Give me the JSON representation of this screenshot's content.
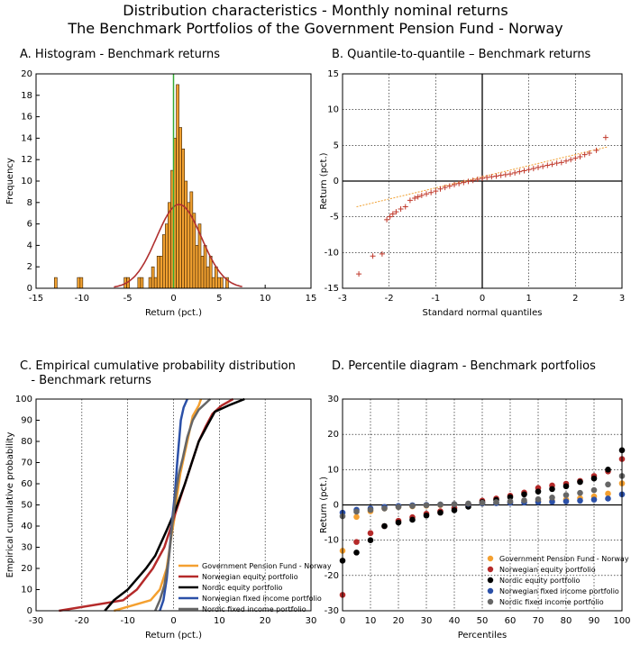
{
  "figure": {
    "title_line1": "Distribution characteristics - Monthly nominal returns",
    "title_line2": "The Benchmark Portfolios of the Government Pension Fund - Norway"
  },
  "chart_data": [
    {
      "id": "A",
      "type": "bar",
      "title": "A. Histogram - Benchmark returns",
      "xlabel": "Return (pct.)",
      "ylabel": "Frequency",
      "xlim": [
        -15,
        15
      ],
      "ylim": [
        0,
        20
      ],
      "xticks": [
        -15,
        -10,
        -5,
        0,
        5,
        10,
        15
      ],
      "yticks": [
        0,
        2,
        4,
        6,
        8,
        10,
        12,
        14,
        16,
        18,
        20
      ],
      "bin_width": 0.3,
      "bins": [
        {
          "x": -13.0,
          "count": 1
        },
        {
          "x": -10.5,
          "count": 1
        },
        {
          "x": -10.2,
          "count": 1
        },
        {
          "x": -5.4,
          "count": 1
        },
        {
          "x": -5.1,
          "count": 1
        },
        {
          "x": -3.9,
          "count": 1
        },
        {
          "x": -3.6,
          "count": 1
        },
        {
          "x": -2.7,
          "count": 1
        },
        {
          "x": -2.4,
          "count": 2
        },
        {
          "x": -2.1,
          "count": 1
        },
        {
          "x": -1.8,
          "count": 3
        },
        {
          "x": -1.5,
          "count": 3
        },
        {
          "x": -1.2,
          "count": 5
        },
        {
          "x": -0.9,
          "count": 6
        },
        {
          "x": -0.6,
          "count": 8
        },
        {
          "x": -0.3,
          "count": 11
        },
        {
          "x": 0.0,
          "count": 14
        },
        {
          "x": 0.3,
          "count": 19
        },
        {
          "x": 0.6,
          "count": 15
        },
        {
          "x": 0.9,
          "count": 13
        },
        {
          "x": 1.2,
          "count": 10
        },
        {
          "x": 1.5,
          "count": 8
        },
        {
          "x": 1.8,
          "count": 9
        },
        {
          "x": 2.1,
          "count": 7
        },
        {
          "x": 2.4,
          "count": 4
        },
        {
          "x": 2.7,
          "count": 6
        },
        {
          "x": 3.0,
          "count": 3
        },
        {
          "x": 3.3,
          "count": 4
        },
        {
          "x": 3.6,
          "count": 2
        },
        {
          "x": 3.9,
          "count": 3
        },
        {
          "x": 4.2,
          "count": 1
        },
        {
          "x": 4.5,
          "count": 2
        },
        {
          "x": 4.8,
          "count": 1
        },
        {
          "x": 5.1,
          "count": 1
        },
        {
          "x": 5.7,
          "count": 1
        }
      ],
      "normal_fit": {
        "mean": 0.6,
        "std": 2.45,
        "n": 160
      },
      "vline_x": 0,
      "colors": {
        "bar": "#f0a030",
        "bar_edge": "#3a2000",
        "fit": "#b03030",
        "vline": "#33aa33"
      }
    },
    {
      "id": "B",
      "type": "scatter",
      "title": "B. Quantile-to-quantile – Benchmark returns",
      "xlabel": "Standard normal quantiles",
      "ylabel": "Return (pct.)",
      "xlim": [
        -3,
        3
      ],
      "ylim": [
        -15,
        15
      ],
      "xticks": [
        -3,
        -2,
        -1,
        0,
        1,
        2,
        3
      ],
      "yticks": [
        -15,
        -10,
        -5,
        0,
        5,
        10,
        15
      ],
      "points": [
        [
          -2.65,
          -13.0
        ],
        [
          -2.35,
          -10.5
        ],
        [
          -2.15,
          -10.2
        ],
        [
          -2.05,
          -5.4
        ],
        [
          -1.98,
          -5.0
        ],
        [
          -1.92,
          -4.6
        ],
        [
          -1.85,
          -4.3
        ],
        [
          -1.75,
          -3.9
        ],
        [
          -1.65,
          -3.6
        ],
        [
          -1.55,
          -2.7
        ],
        [
          -1.45,
          -2.4
        ],
        [
          -1.38,
          -2.2
        ],
        [
          -1.3,
          -2.0
        ],
        [
          -1.2,
          -1.8
        ],
        [
          -1.1,
          -1.6
        ],
        [
          -1.0,
          -1.4
        ],
        [
          -0.9,
          -1.1
        ],
        [
          -0.8,
          -0.9
        ],
        [
          -0.7,
          -0.7
        ],
        [
          -0.6,
          -0.5
        ],
        [
          -0.5,
          -0.35
        ],
        [
          -0.4,
          -0.2
        ],
        [
          -0.3,
          -0.05
        ],
        [
          -0.2,
          0.1
        ],
        [
          -0.1,
          0.25
        ],
        [
          0.0,
          0.4
        ],
        [
          0.1,
          0.5
        ],
        [
          0.2,
          0.6
        ],
        [
          0.3,
          0.7
        ],
        [
          0.4,
          0.8
        ],
        [
          0.5,
          0.9
        ],
        [
          0.6,
          1.0
        ],
        [
          0.7,
          1.15
        ],
        [
          0.8,
          1.3
        ],
        [
          0.9,
          1.45
        ],
        [
          1.0,
          1.6
        ],
        [
          1.1,
          1.75
        ],
        [
          1.2,
          1.9
        ],
        [
          1.3,
          2.05
        ],
        [
          1.4,
          2.2
        ],
        [
          1.5,
          2.35
        ],
        [
          1.6,
          2.5
        ],
        [
          1.7,
          2.6
        ],
        [
          1.8,
          2.8
        ],
        [
          1.9,
          3.0
        ],
        [
          2.0,
          3.2
        ],
        [
          2.1,
          3.4
        ],
        [
          2.2,
          3.7
        ],
        [
          2.3,
          3.9
        ],
        [
          2.45,
          4.3
        ],
        [
          2.65,
          6.1
        ]
      ],
      "ref_line": {
        "x": [
          -2.7,
          2.7
        ],
        "y": [
          -3.6,
          4.8
        ]
      },
      "colors": {
        "marker": "#c0392b",
        "ref_line": "#f0a030"
      }
    },
    {
      "id": "C",
      "type": "line",
      "title_line1": "C. Empirical cumulative probability distribution",
      "title_line2": "   - Benchmark returns",
      "xlabel": "Return (pct.)",
      "ylabel": "Empirical cumulative probability",
      "xlim": [
        -30,
        30
      ],
      "ylim": [
        0,
        100
      ],
      "xticks": [
        -30,
        -20,
        -10,
        0,
        10,
        20,
        30
      ],
      "yticks": [
        0,
        10,
        20,
        30,
        40,
        50,
        60,
        70,
        80,
        90,
        100
      ],
      "series": [
        {
          "name": "Government Pension Fund - Norway",
          "color": "#f4a030",
          "points": [
            [
              -13,
              0
            ],
            [
              -5,
              5
            ],
            [
              -3,
              10
            ],
            [
              -1.5,
              20
            ],
            [
              -0.5,
              35
            ],
            [
              0.3,
              45
            ],
            [
              0.8,
              55
            ],
            [
              1.5,
              65
            ],
            [
              2.5,
              75
            ],
            [
              3.5,
              85
            ],
            [
              4.2,
              92
            ],
            [
              5.5,
              97
            ],
            [
              6,
              100
            ]
          ]
        },
        {
          "name": "Norwegian equity portfolio",
          "color": "#b52a2a",
          "points": [
            [
              -25,
              0
            ],
            [
              -11,
              5
            ],
            [
              -8,
              10
            ],
            [
              -4.5,
              20
            ],
            [
              -2,
              30
            ],
            [
              -0.5,
              40
            ],
            [
              1,
              50
            ],
            [
              2.5,
              60
            ],
            [
              4,
              70
            ],
            [
              5.5,
              80
            ],
            [
              7,
              87
            ],
            [
              8.5,
              93
            ],
            [
              10.5,
              97
            ],
            [
              13,
              100
            ]
          ]
        },
        {
          "name": "Nordic equity portfolio",
          "color": "#000000",
          "points": [
            [
              -15,
              0
            ],
            [
              -13,
              5
            ],
            [
              -10,
              10
            ],
            [
              -6,
              20
            ],
            [
              -4,
              26
            ],
            [
              -1.5,
              38
            ],
            [
              0.5,
              48
            ],
            [
              2.5,
              60
            ],
            [
              4,
              70
            ],
            [
              5.5,
              80
            ],
            [
              7.5,
              88
            ],
            [
              9,
              94
            ],
            [
              12,
              97
            ],
            [
              15.5,
              100
            ]
          ]
        },
        {
          "name": "Norwegian fixed income portfolio",
          "color": "#2b50a8",
          "points": [
            [
              -3,
              0
            ],
            [
              -2.2,
              5
            ],
            [
              -1.5,
              15
            ],
            [
              -0.8,
              30
            ],
            [
              -0.2,
              45
            ],
            [
              0.3,
              55
            ],
            [
              0.8,
              70
            ],
            [
              1.2,
              80
            ],
            [
              1.6,
              90
            ],
            [
              2.2,
              96
            ],
            [
              3,
              100
            ]
          ]
        },
        {
          "name": "Nordic fixed income portfolio",
          "color": "#666666",
          "points": [
            [
              -4,
              0
            ],
            [
              -3,
              5
            ],
            [
              -2,
              12
            ],
            [
              -1,
              25
            ],
            [
              -0.3,
              40
            ],
            [
              0.5,
              55
            ],
            [
              1.2,
              65
            ],
            [
              2,
              72
            ],
            [
              3,
              82
            ],
            [
              4.2,
              90
            ],
            [
              5.5,
              95
            ],
            [
              8,
              100
            ]
          ]
        }
      ]
    },
    {
      "id": "D",
      "type": "scatter",
      "title": "D. Percentile diagram - Benchmark portfolios",
      "xlabel": "Percentiles",
      "ylabel": "Return (pct.)",
      "xlim": [
        0,
        100
      ],
      "ylim": [
        -30,
        30
      ],
      "xticks": [
        0,
        10,
        20,
        30,
        40,
        50,
        60,
        70,
        80,
        90,
        100
      ],
      "yticks": [
        -30,
        -20,
        -10,
        0,
        10,
        20,
        30
      ],
      "x": [
        0,
        5,
        10,
        15,
        20,
        25,
        30,
        35,
        40,
        45,
        50,
        55,
        60,
        65,
        70,
        75,
        80,
        85,
        90,
        95,
        100
      ],
      "series": [
        {
          "name": "Government Pension Fund - Norway",
          "color": "#f4a030",
          "values": [
            -13,
            -3.4,
            -1.8,
            -1.0,
            -0.6,
            -0.4,
            -0.2,
            -0.05,
            0.1,
            0.25,
            0.4,
            0.55,
            0.7,
            0.85,
            1.0,
            1.2,
            1.5,
            1.9,
            2.4,
            3.2,
            6.1
          ]
        },
        {
          "name": "Norwegian equity portfolio",
          "color": "#b52a2a",
          "values": [
            -25.5,
            -10.5,
            -8.0,
            -6.0,
            -4.5,
            -3.5,
            -2.5,
            -1.8,
            -0.9,
            0.2,
            1.2,
            1.8,
            2.6,
            3.5,
            4.8,
            5.5,
            6.0,
            6.8,
            8.2,
            9.5,
            13.0
          ]
        },
        {
          "name": "Nordic equity portfolio",
          "color": "#000000",
          "values": [
            -15.8,
            -13.5,
            -10.0,
            -6.0,
            -5.0,
            -4.2,
            -3.0,
            -2.2,
            -1.5,
            -0.5,
            0.8,
            1.4,
            2.2,
            3.0,
            3.8,
            4.5,
            5.3,
            6.5,
            7.5,
            10.0,
            15.5
          ]
        },
        {
          "name": "Norwegian fixed income portfolio",
          "color": "#2b50a8",
          "values": [
            -2.2,
            -1.4,
            -1.0,
            -0.6,
            -0.3,
            -0.1,
            0.0,
            0.1,
            0.2,
            0.3,
            0.4,
            0.5,
            0.6,
            0.7,
            0.8,
            0.9,
            1.0,
            1.2,
            1.5,
            1.8,
            3.0
          ]
        },
        {
          "name": "Nordic fixed income portfolio",
          "color": "#666666",
          "values": [
            -3.2,
            -1.9,
            -1.4,
            -1.0,
            -0.6,
            -0.3,
            -0.1,
            0.1,
            0.2,
            0.4,
            0.6,
            0.8,
            1.0,
            1.3,
            1.6,
            2.1,
            2.8,
            3.4,
            4.2,
            5.8,
            8.2
          ]
        }
      ]
    }
  ]
}
